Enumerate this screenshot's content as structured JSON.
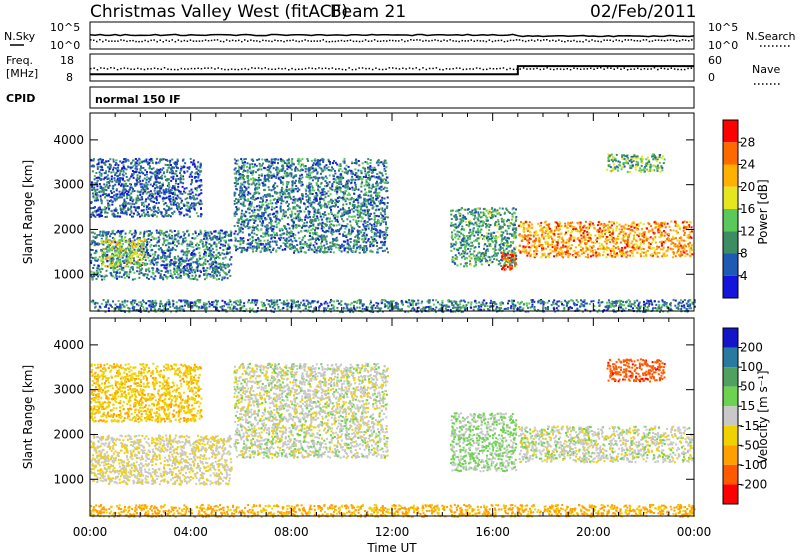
{
  "header": {
    "radar": "Christmas Valley West (fitACF)",
    "beam": "Beam 21",
    "date": "02/Feb/2011"
  },
  "top_panels": {
    "nsky_label": "N.Sky",
    "nsearch_label": "N.Search",
    "noise_ticks": [
      "10^5",
      "10^0"
    ],
    "freq_label_line1": "Freq.",
    "freq_label_line2": "[MHz]",
    "freq_ticks": [
      "18",
      "8"
    ],
    "nave_label": "Nave",
    "nave_ticks": [
      "60",
      "0"
    ],
    "cpid_label": "CPID",
    "cpid_value": "normal 150 IF"
  },
  "axes": {
    "xlabel": "Time UT",
    "ylabel": "Slant Range [km]",
    "xticks": [
      "00:00",
      "04:00",
      "08:00",
      "12:00",
      "16:00",
      "20:00",
      "00:00"
    ],
    "yticks": [
      "4000",
      "3000",
      "2000",
      "1000"
    ]
  },
  "power_colorbar": {
    "label": "Power [dB]",
    "ticks": [
      "28",
      "24",
      "20",
      "16",
      "12",
      "8",
      "4"
    ],
    "colors": [
      "#ff0000",
      "#ff6a00",
      "#ffb000",
      "#e6e61e",
      "#5ac85a",
      "#3c8c64",
      "#1e5ab4",
      "#1414dc"
    ]
  },
  "velocity_colorbar": {
    "label": "Velocity [m s⁻¹]",
    "ticks": [
      "200",
      "100",
      "50",
      "15",
      "-15",
      "-50",
      "-100",
      "-200"
    ],
    "colors": [
      "#1414c8",
      "#2a7aa0",
      "#50a060",
      "#6cd250",
      "#c8c8c8",
      "#f0d200",
      "#ffa000",
      "#ff5a00",
      "#ff0000"
    ]
  },
  "chart_data": {
    "type": "heatmap",
    "title": "Christmas Valley West (fitACF) Beam 21 02/Feb/2011",
    "xlabel": "Time UT",
    "ylabel": "Slant Range [km]",
    "xlim_hours": [
      0,
      24
    ],
    "ylim_km": [
      180,
      4600
    ],
    "grid": false,
    "panels": [
      {
        "name": "Power",
        "unit": "dB",
        "color_range": [
          0,
          30
        ],
        "echo_regions": [
          {
            "t_start": 0.0,
            "t_end": 5.6,
            "range_start_km": 900,
            "range_end_km": 2000,
            "typical_value": 8
          },
          {
            "t_start": 0.4,
            "t_end": 2.2,
            "range_start_km": 1200,
            "range_end_km": 1800,
            "typical_value": 16
          },
          {
            "t_start": 0.0,
            "t_end": 4.4,
            "range_start_km": 2300,
            "range_end_km": 3600,
            "typical_value": 6
          },
          {
            "t_start": 5.7,
            "t_end": 11.8,
            "range_start_km": 1500,
            "range_end_km": 3600,
            "typical_value": 8
          },
          {
            "t_start": 14.3,
            "t_end": 16.9,
            "range_start_km": 1200,
            "range_end_km": 2500,
            "typical_value": 10
          },
          {
            "t_start": 16.3,
            "t_end": 16.9,
            "range_start_km": 1100,
            "range_end_km": 1500,
            "typical_value": 28
          },
          {
            "t_start": 17.0,
            "t_end": 23.9,
            "range_start_km": 1400,
            "range_end_km": 2200,
            "typical_value": 22
          },
          {
            "t_start": 20.5,
            "t_end": 22.8,
            "range_start_km": 3300,
            "range_end_km": 3700,
            "typical_value": 12
          },
          {
            "t_start": 0.0,
            "t_end": 24.0,
            "range_start_km": 180,
            "range_end_km": 450,
            "typical_value": 8
          }
        ]
      },
      {
        "name": "Velocity",
        "unit": "m s^-1",
        "color_range": [
          -200,
          200
        ],
        "echo_regions": [
          {
            "t_start": 0.0,
            "t_end": 5.6,
            "range_start_km": 900,
            "range_end_km": 2000,
            "typical_value": -10
          },
          {
            "t_start": 0.0,
            "t_end": 4.4,
            "range_start_km": 2300,
            "range_end_km": 3600,
            "typical_value": -40
          },
          {
            "t_start": 5.7,
            "t_end": 11.8,
            "range_start_km": 1500,
            "range_end_km": 3600,
            "typical_value": 0
          },
          {
            "t_start": 14.3,
            "t_end": 16.9,
            "range_start_km": 1200,
            "range_end_km": 2500,
            "typical_value": 20
          },
          {
            "t_start": 17.0,
            "t_end": 23.9,
            "range_start_km": 1400,
            "range_end_km": 2200,
            "typical_value": 0
          },
          {
            "t_start": 20.5,
            "t_end": 22.8,
            "range_start_km": 3200,
            "range_end_km": 3700,
            "typical_value": -180
          },
          {
            "t_start": 0.0,
            "t_end": 24.0,
            "range_start_km": 180,
            "range_end_km": 450,
            "typical_value": -60
          }
        ]
      }
    ],
    "frequency_mhz": [
      {
        "t_start": 0.0,
        "t_end": 17.0,
        "value": 10.5
      },
      {
        "t_start": 17.0,
        "t_end": 24.0,
        "value": 13.5
      }
    ],
    "cpid": "normal 150 IF"
  }
}
